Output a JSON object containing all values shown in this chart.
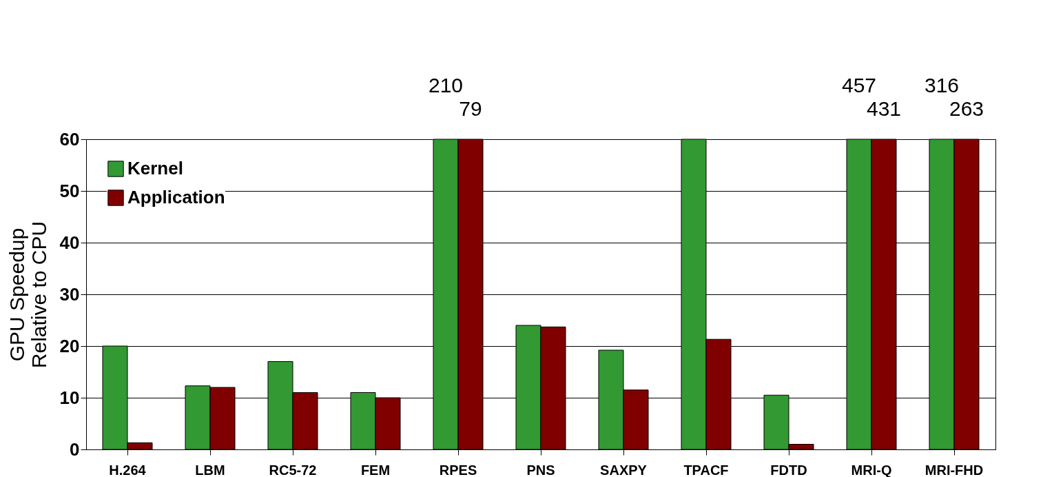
{
  "chart_data": {
    "type": "bar",
    "ylabel": "GPU Speedup\nRelative to CPU",
    "categories": [
      "H.264",
      "LBM",
      "RC5-72",
      "FEM",
      "RPES",
      "PNS",
      "SAXPY",
      "TPACF",
      "FDTD",
      "MRI-Q",
      "MRI-FHD"
    ],
    "series": [
      {
        "name": "Kernel",
        "color": "#339933",
        "values": [
          20,
          12.3,
          17,
          11,
          60,
          24,
          19.2,
          60,
          10.5,
          60,
          60
        ]
      },
      {
        "name": "Application",
        "color": "#800000",
        "values": [
          1.3,
          12,
          11,
          10,
          60,
          23.7,
          11.5,
          21.3,
          1,
          60,
          60
        ]
      }
    ],
    "annotations": [
      {
        "text": "210",
        "x": "RPES",
        "y": 60
      },
      {
        "text": "79",
        "x": "RPES",
        "y": 60
      },
      {
        "text": "457",
        "x": "MRI-Q",
        "y": 60
      },
      {
        "text": "431",
        "x": "MRI-Q",
        "y": 60
      },
      {
        "text": "316",
        "x": "MRI-FHD",
        "y": 60
      },
      {
        "text": "263",
        "x": "MRI-FHD",
        "y": 60
      }
    ],
    "ylim": [
      0,
      60
    ],
    "yticks": [
      0,
      10,
      20,
      30,
      40,
      50,
      60
    ],
    "grid": "y",
    "legend": "top left"
  }
}
